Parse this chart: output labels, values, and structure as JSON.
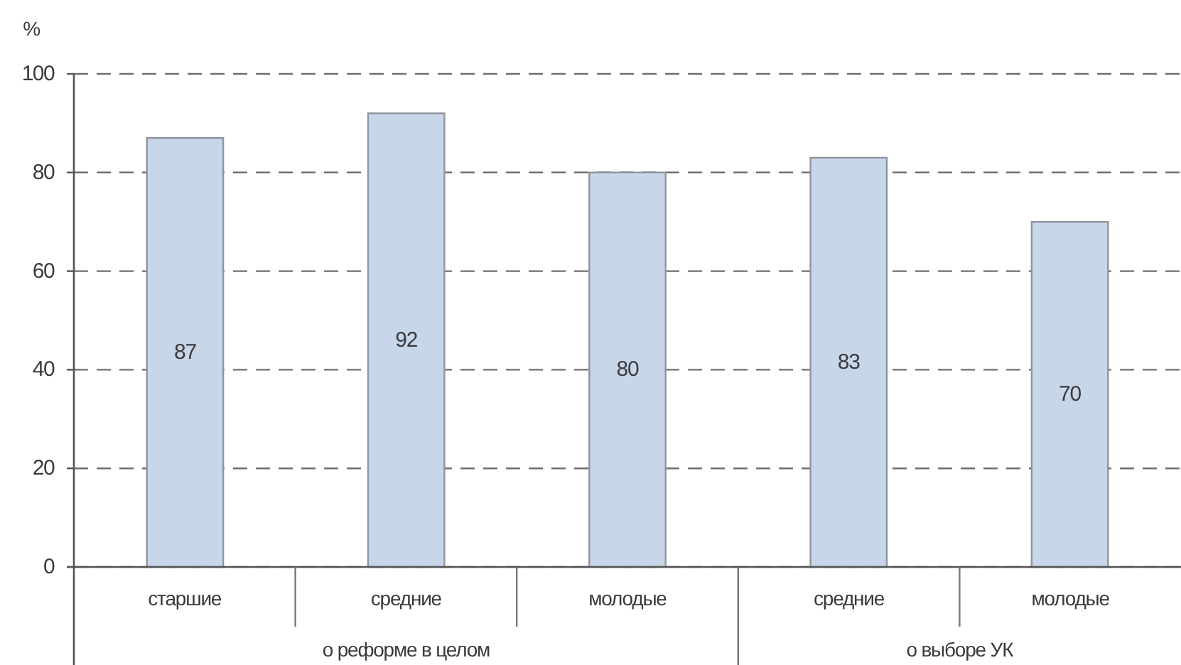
{
  "chart_data": {
    "type": "bar",
    "ylabel": "%",
    "categories": [
      "старшие",
      "средние",
      "молодые",
      "средние",
      "молодые"
    ],
    "values": [
      87,
      92,
      80,
      83,
      70
    ],
    "color": "#c8d6ea",
    "ylim": [
      0,
      100
    ],
    "yticks": [
      0,
      20,
      40,
      60,
      80,
      100
    ],
    "grid": "y",
    "data_labels": true,
    "annotations": [
      "о реформе в целом",
      "о выборе УК"
    ]
  }
}
